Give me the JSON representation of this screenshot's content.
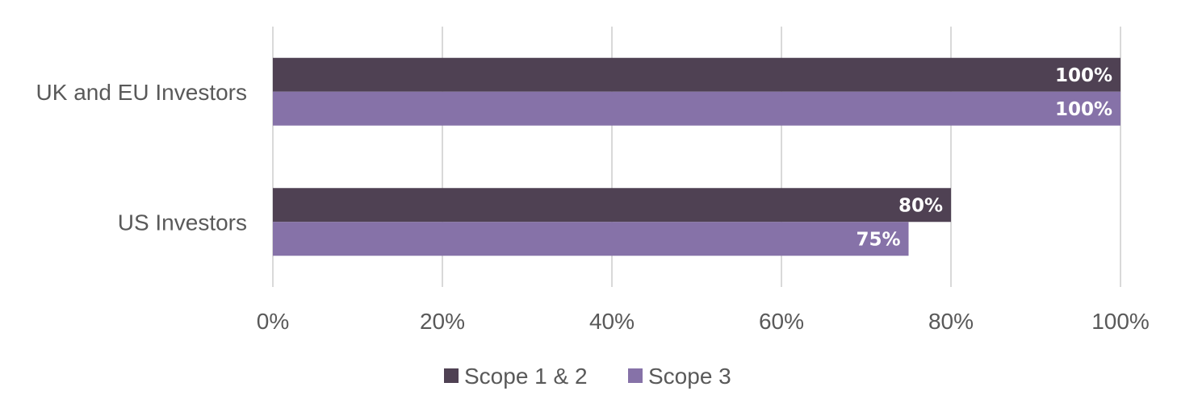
{
  "chart_data": {
    "type": "bar",
    "orientation": "horizontal",
    "categories": [
      "UK and EU Investors",
      "US Investors"
    ],
    "series": [
      {
        "name": "Scope 1 & 2",
        "values": [
          100,
          80
        ],
        "color": "#4f4153"
      },
      {
        "name": "Scope 3",
        "values": [
          100,
          75
        ],
        "color": "#8672a8"
      }
    ],
    "data_labels": [
      [
        "100%",
        "80%"
      ],
      [
        "100%",
        "75%"
      ]
    ],
    "xlim": [
      0,
      100
    ],
    "ticks": [
      0,
      20,
      40,
      60,
      80,
      100
    ],
    "tick_labels": [
      "0%",
      "20%",
      "40%",
      "60%",
      "80%",
      "100%"
    ],
    "grid": "vertical",
    "legend_position": "bottom",
    "title": "",
    "xlabel": "",
    "ylabel": ""
  }
}
